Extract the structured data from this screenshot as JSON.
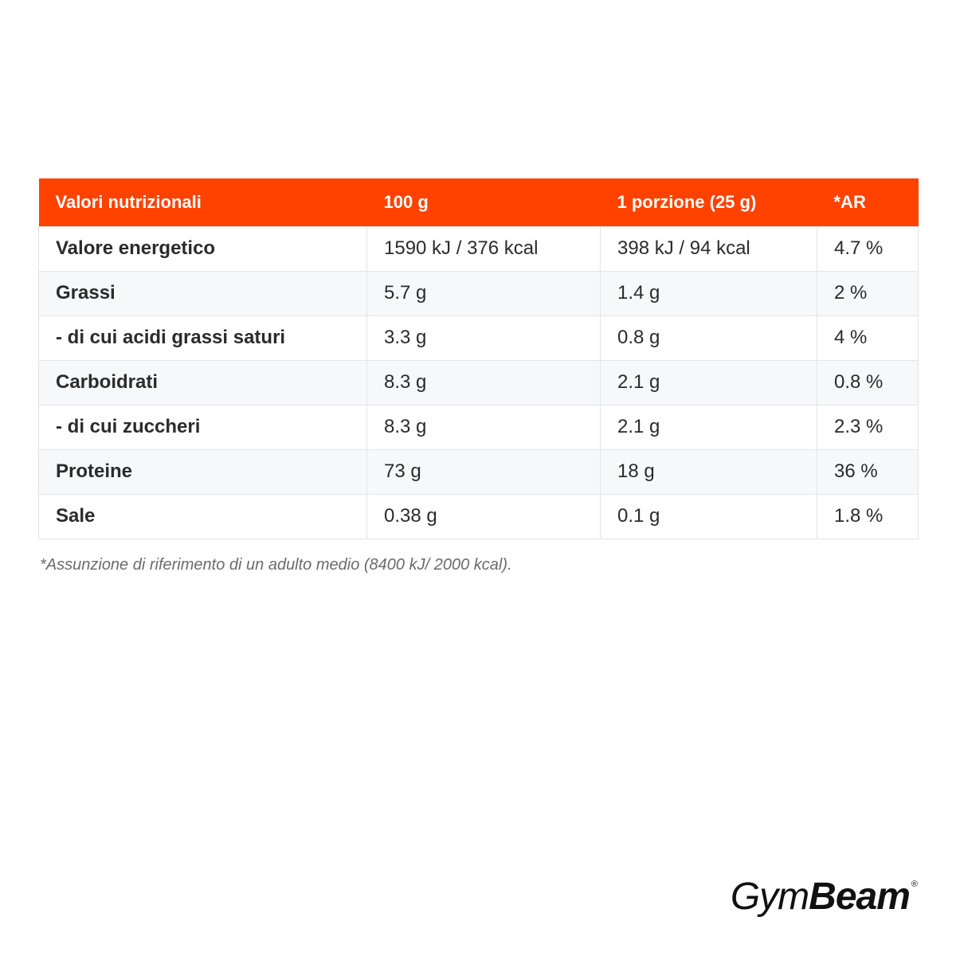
{
  "table": {
    "headers": [
      "Valori nutrizionali",
      "100 g",
      "1 porzione (25 g)",
      "*AR"
    ],
    "rows": [
      [
        "Valore energetico",
        "1590 kJ / 376 kcal",
        "398 kJ / 94 kcal",
        "4.7 %"
      ],
      [
        "Grassi",
        "5.7 g",
        "1.4 g",
        "2 %"
      ],
      [
        "- di cui acidi grassi saturi",
        "3.3 g",
        "0.8 g",
        "4 %"
      ],
      [
        "Carboidrati",
        "8.3 g",
        "2.1 g",
        "0.8 %"
      ],
      [
        "- di cui zuccheri",
        "8.3 g",
        "2.1 g",
        "2.3 %"
      ],
      [
        "Proteine",
        "73 g",
        "18 g",
        "36 %"
      ],
      [
        "Sale",
        "0.38 g",
        "0.1 g",
        "1.8 %"
      ]
    ]
  },
  "footnote": "*Assunzione di riferimento di un adulto medio (8400 kJ/ 2000 kcal).",
  "logo": {
    "part1": "Gym",
    "part2": "Beam",
    "registered": "®"
  },
  "colors": {
    "header_background": "#ff4200",
    "header_text": "#ffffff",
    "body_text": "#2b2b2b",
    "row_alt_background": "#f7f8fa",
    "border": "#e2e4e7"
  }
}
